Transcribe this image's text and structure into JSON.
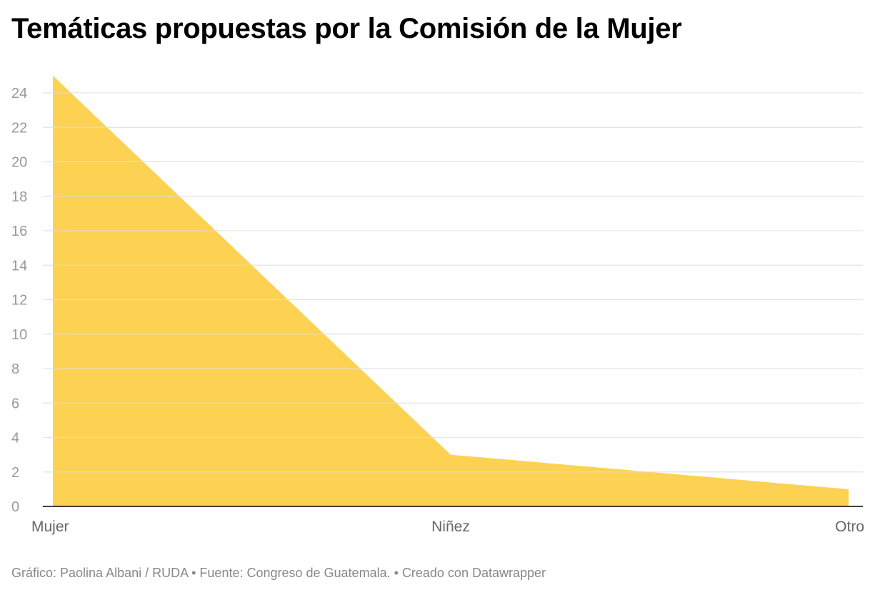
{
  "chart_data": {
    "type": "area",
    "title": "Temáticas propuestas por la Comisión de la Mujer",
    "categories": [
      "Mujer",
      "Niñez",
      "Otro"
    ],
    "values": [
      25,
      3,
      1
    ],
    "ylim": [
      0,
      25
    ],
    "yticks": [
      0,
      2,
      4,
      6,
      8,
      10,
      12,
      14,
      16,
      18,
      20,
      22,
      24
    ],
    "grid": true,
    "colors": {
      "area": "#fdcd3f",
      "grid": "#dddddd",
      "axis": "#000000"
    }
  },
  "footer": "Gráfico: Paolina Albani / RUDA • Fuente: Congreso de Guatemala. • Creado con Datawrapper"
}
